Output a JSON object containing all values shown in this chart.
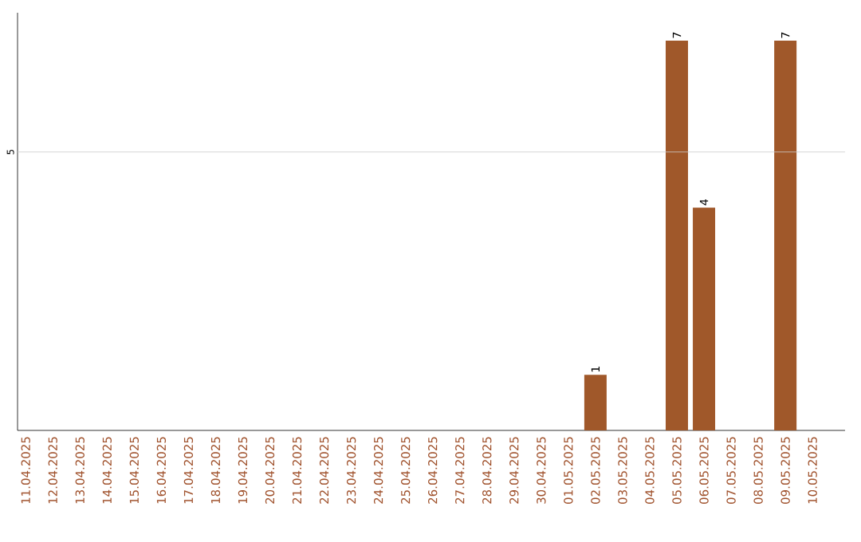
{
  "chart_data": {
    "type": "bar",
    "categories": [
      "11.04.2025",
      "12.04.2025",
      "13.04.2025",
      "14.04.2025",
      "15.04.2025",
      "16.04.2025",
      "17.04.2025",
      "18.04.2025",
      "19.04.2025",
      "20.04.2025",
      "21.04.2025",
      "22.04.2025",
      "23.04.2025",
      "24.04.2025",
      "25.04.2025",
      "26.04.2025",
      "27.04.2025",
      "28.04.2025",
      "29.04.2025",
      "30.04.2025",
      "01.05.2025",
      "02.05.2025",
      "03.05.2025",
      "04.05.2025",
      "05.05.2025",
      "06.05.2025",
      "07.05.2025",
      "08.05.2025",
      "09.05.2025",
      "10.05.2025"
    ],
    "values": [
      null,
      null,
      null,
      null,
      null,
      null,
      null,
      null,
      null,
      null,
      null,
      null,
      null,
      null,
      null,
      null,
      null,
      null,
      null,
      null,
      null,
      1,
      null,
      null,
      7,
      4,
      null,
      null,
      7,
      null
    ],
    "data_labels": true,
    "color": "#a0582a",
    "ylim": [
      0,
      7.5
    ],
    "ref_lines": [
      {
        "axis": "y",
        "value": 5,
        "label": "5",
        "color": "#cccccc"
      }
    ]
  }
}
